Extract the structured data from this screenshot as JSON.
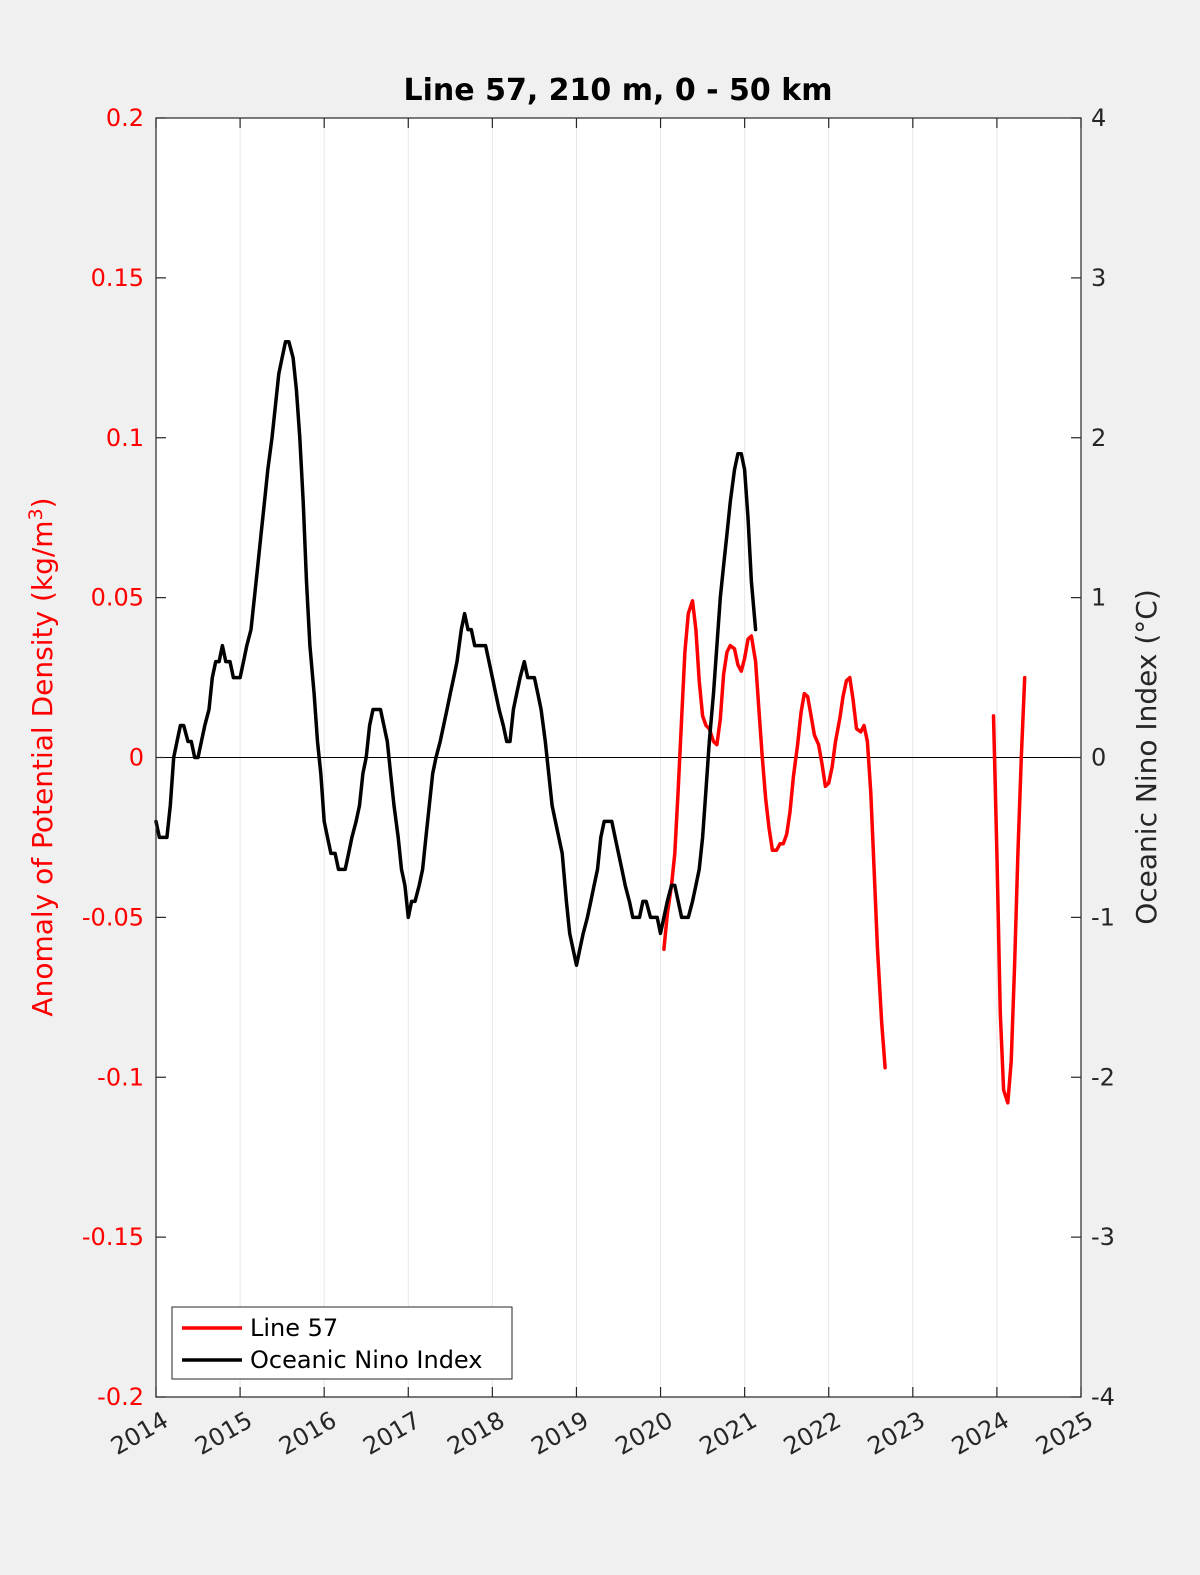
{
  "chart_data": {
    "type": "line",
    "title": "Line 57, 210 m, 0 - 50 km",
    "xlabel": "",
    "ylabel_left": "Anomaly of Potential Density (kg/m",
    "ylabel_left_sup": "3",
    "ylabel_left_close": ")",
    "ylabel_right": "Oceanic Nino Index (°C)",
    "xlim": [
      2014,
      2025
    ],
    "ylim_left": [
      -0.2,
      0.2
    ],
    "ylim_right": [
      -4,
      4
    ],
    "x_ticks": [
      "2014",
      "2015",
      "2016",
      "2017",
      "2018",
      "2019",
      "2020",
      "2021",
      "2022",
      "2023",
      "2024",
      "2025"
    ],
    "y_ticks_left": [
      "0.2",
      "0.15",
      "0.1",
      "0.05",
      "0",
      "-0.05",
      "-0.1",
      "-0.15",
      "-0.2"
    ],
    "y_ticks_right": [
      "4",
      "3",
      "2",
      "1",
      "0",
      "-1",
      "-2",
      "-3",
      "-4"
    ],
    "grid": "vertical",
    "legend_position": "bottom-left",
    "series": [
      {
        "name": "Line 57",
        "axis": "left",
        "color": "#ff0000",
        "segments": [
          [
            [
              2020.04,
              -0.06
            ],
            [
              2020.08,
              -0.049
            ],
            [
              2020.13,
              -0.04
            ],
            [
              2020.17,
              -0.03
            ],
            [
              2020.21,
              -0.01
            ],
            [
              2020.25,
              0.012
            ],
            [
              2020.29,
              0.033
            ],
            [
              2020.33,
              0.045
            ],
            [
              2020.38,
              0.049
            ],
            [
              2020.42,
              0.04
            ],
            [
              2020.46,
              0.024
            ],
            [
              2020.5,
              0.013
            ],
            [
              2020.54,
              0.01
            ],
            [
              2020.58,
              0.009
            ],
            [
              2020.63,
              0.005
            ],
            [
              2020.67,
              0.004
            ],
            [
              2020.71,
              0.012
            ],
            [
              2020.75,
              0.026
            ],
            [
              2020.79,
              0.033
            ],
            [
              2020.83,
              0.035
            ],
            [
              2020.88,
              0.034
            ],
            [
              2020.92,
              0.029
            ],
            [
              2020.96,
              0.027
            ],
            [
              2021.0,
              0.031
            ],
            [
              2021.04,
              0.037
            ],
            [
              2021.08,
              0.038
            ],
            [
              2021.13,
              0.03
            ],
            [
              2021.17,
              0.015
            ],
            [
              2021.21,
              0.0
            ],
            [
              2021.25,
              -0.013
            ],
            [
              2021.29,
              -0.022
            ],
            [
              2021.33,
              -0.029
            ],
            [
              2021.38,
              -0.029
            ],
            [
              2021.42,
              -0.027
            ],
            [
              2021.46,
              -0.027
            ],
            [
              2021.5,
              -0.024
            ],
            [
              2021.54,
              -0.017
            ],
            [
              2021.58,
              -0.006
            ],
            [
              2021.63,
              0.004
            ],
            [
              2021.67,
              0.014
            ],
            [
              2021.71,
              0.02
            ],
            [
              2021.75,
              0.019
            ],
            [
              2021.79,
              0.013
            ],
            [
              2021.83,
              0.007
            ],
            [
              2021.88,
              0.004
            ],
            [
              2021.92,
              -0.002
            ],
            [
              2021.96,
              -0.009
            ],
            [
              2022.0,
              -0.008
            ],
            [
              2022.04,
              -0.003
            ],
            [
              2022.08,
              0.005
            ],
            [
              2022.13,
              0.012
            ],
            [
              2022.17,
              0.019
            ],
            [
              2022.21,
              0.024
            ],
            [
              2022.25,
              0.025
            ],
            [
              2022.29,
              0.018
            ],
            [
              2022.33,
              0.009
            ],
            [
              2022.38,
              0.008
            ],
            [
              2022.42,
              0.01
            ],
            [
              2022.46,
              0.005
            ],
            [
              2022.5,
              -0.011
            ],
            [
              2022.54,
              -0.035
            ],
            [
              2022.58,
              -0.06
            ],
            [
              2022.63,
              -0.083
            ],
            [
              2022.67,
              -0.097
            ]
          ],
          [
            [
              2023.96,
              0.013
            ],
            [
              2024.0,
              -0.03
            ],
            [
              2024.04,
              -0.08
            ],
            [
              2024.08,
              -0.104
            ],
            [
              2024.13,
              -0.108
            ],
            [
              2024.17,
              -0.095
            ],
            [
              2024.21,
              -0.065
            ],
            [
              2024.25,
              -0.03
            ],
            [
              2024.29,
              0.0
            ],
            [
              2024.33,
              0.025
            ]
          ]
        ]
      },
      {
        "name": "Oceanic Nino Index",
        "axis": "right",
        "color": "#000000",
        "points": [
          [
            2014.0,
            -0.4
          ],
          [
            2014.04,
            -0.5
          ],
          [
            2014.08,
            -0.5
          ],
          [
            2014.13,
            -0.5
          ],
          [
            2014.17,
            -0.3
          ],
          [
            2014.21,
            0.0
          ],
          [
            2014.25,
            0.1
          ],
          [
            2014.29,
            0.2
          ],
          [
            2014.33,
            0.2
          ],
          [
            2014.38,
            0.1
          ],
          [
            2014.42,
            0.1
          ],
          [
            2014.46,
            0.0
          ],
          [
            2014.5,
            0.0
          ],
          [
            2014.54,
            0.1
          ],
          [
            2014.58,
            0.2
          ],
          [
            2014.63,
            0.3
          ],
          [
            2014.67,
            0.5
          ],
          [
            2014.71,
            0.6
          ],
          [
            2014.75,
            0.6
          ],
          [
            2014.79,
            0.7
          ],
          [
            2014.83,
            0.6
          ],
          [
            2014.88,
            0.6
          ],
          [
            2014.92,
            0.5
          ],
          [
            2014.96,
            0.5
          ],
          [
            2015.0,
            0.5
          ],
          [
            2015.04,
            0.6
          ],
          [
            2015.08,
            0.7
          ],
          [
            2015.13,
            0.8
          ],
          [
            2015.17,
            1.0
          ],
          [
            2015.21,
            1.2
          ],
          [
            2015.25,
            1.4
          ],
          [
            2015.29,
            1.6
          ],
          [
            2015.33,
            1.8
          ],
          [
            2015.38,
            2.0
          ],
          [
            2015.42,
            2.2
          ],
          [
            2015.46,
            2.4
          ],
          [
            2015.5,
            2.5
          ],
          [
            2015.54,
            2.6
          ],
          [
            2015.58,
            2.6
          ],
          [
            2015.63,
            2.5
          ],
          [
            2015.67,
            2.3
          ],
          [
            2015.71,
            2.0
          ],
          [
            2015.75,
            1.6
          ],
          [
            2015.79,
            1.1
          ],
          [
            2015.83,
            0.7
          ],
          [
            2015.88,
            0.4
          ],
          [
            2015.92,
            0.1
          ],
          [
            2015.96,
            -0.1
          ],
          [
            2016.0,
            -0.4
          ],
          [
            2016.04,
            -0.5
          ],
          [
            2016.08,
            -0.6
          ],
          [
            2016.13,
            -0.6
          ],
          [
            2016.17,
            -0.7
          ],
          [
            2016.21,
            -0.7
          ],
          [
            2016.25,
            -0.7
          ],
          [
            2016.29,
            -0.6
          ],
          [
            2016.33,
            -0.5
          ],
          [
            2016.38,
            -0.4
          ],
          [
            2016.42,
            -0.3
          ],
          [
            2016.46,
            -0.1
          ],
          [
            2016.5,
            0.0
          ],
          [
            2016.54,
            0.2
          ],
          [
            2016.58,
            0.3
          ],
          [
            2016.63,
            0.3
          ],
          [
            2016.67,
            0.3
          ],
          [
            2016.71,
            0.2
          ],
          [
            2016.75,
            0.1
          ],
          [
            2016.79,
            -0.1
          ],
          [
            2016.83,
            -0.3
          ],
          [
            2016.88,
            -0.5
          ],
          [
            2016.92,
            -0.7
          ],
          [
            2016.96,
            -0.8
          ],
          [
            2017.0,
            -1.0
          ],
          [
            2017.04,
            -0.9
          ],
          [
            2017.08,
            -0.9
          ],
          [
            2017.13,
            -0.8
          ],
          [
            2017.17,
            -0.7
          ],
          [
            2017.21,
            -0.5
          ],
          [
            2017.25,
            -0.3
          ],
          [
            2017.29,
            -0.1
          ],
          [
            2017.33,
            0.0
          ],
          [
            2017.38,
            0.1
          ],
          [
            2017.42,
            0.2
          ],
          [
            2017.46,
            0.3
          ],
          [
            2017.5,
            0.4
          ],
          [
            2017.54,
            0.5
          ],
          [
            2017.58,
            0.6
          ],
          [
            2017.63,
            0.8
          ],
          [
            2017.67,
            0.9
          ],
          [
            2017.71,
            0.8
          ],
          [
            2017.75,
            0.8
          ],
          [
            2017.79,
            0.7
          ],
          [
            2017.83,
            0.7
          ],
          [
            2017.88,
            0.7
          ],
          [
            2017.92,
            0.7
          ],
          [
            2017.96,
            0.6
          ],
          [
            2018.0,
            0.5
          ],
          [
            2018.04,
            0.4
          ],
          [
            2018.08,
            0.3
          ],
          [
            2018.13,
            0.2
          ],
          [
            2018.17,
            0.1
          ],
          [
            2018.21,
            0.1
          ],
          [
            2018.25,
            0.3
          ],
          [
            2018.29,
            0.4
          ],
          [
            2018.33,
            0.5
          ],
          [
            2018.38,
            0.6
          ],
          [
            2018.42,
            0.5
          ],
          [
            2018.46,
            0.5
          ],
          [
            2018.5,
            0.5
          ],
          [
            2018.54,
            0.4
          ],
          [
            2018.58,
            0.3
          ],
          [
            2018.63,
            0.1
          ],
          [
            2018.67,
            -0.1
          ],
          [
            2018.71,
            -0.3
          ],
          [
            2018.75,
            -0.4
          ],
          [
            2018.79,
            -0.5
          ],
          [
            2018.83,
            -0.6
          ],
          [
            2018.88,
            -0.9
          ],
          [
            2018.92,
            -1.1
          ],
          [
            2018.96,
            -1.2
          ],
          [
            2019.0,
            -1.3
          ],
          [
            2019.04,
            -1.2
          ],
          [
            2019.08,
            -1.1
          ],
          [
            2019.13,
            -1.0
          ],
          [
            2019.17,
            -0.9
          ],
          [
            2019.21,
            -0.8
          ],
          [
            2019.25,
            -0.7
          ],
          [
            2019.29,
            -0.5
          ],
          [
            2019.33,
            -0.4
          ],
          [
            2019.38,
            -0.4
          ],
          [
            2019.42,
            -0.4
          ],
          [
            2019.46,
            -0.5
          ],
          [
            2019.5,
            -0.6
          ],
          [
            2019.54,
            -0.7
          ],
          [
            2019.58,
            -0.8
          ],
          [
            2019.63,
            -0.9
          ],
          [
            2019.67,
            -1.0
          ],
          [
            2019.71,
            -1.0
          ],
          [
            2019.75,
            -1.0
          ],
          [
            2019.79,
            -0.9
          ],
          [
            2019.83,
            -0.9
          ],
          [
            2019.88,
            -1.0
          ],
          [
            2019.92,
            -1.0
          ],
          [
            2019.96,
            -1.0
          ],
          [
            2020.0,
            -1.1
          ],
          [
            2020.04,
            -1.0
          ],
          [
            2020.08,
            -0.9
          ],
          [
            2020.13,
            -0.8
          ],
          [
            2020.17,
            -0.8
          ],
          [
            2020.21,
            -0.9
          ],
          [
            2020.25,
            -1.0
          ],
          [
            2020.29,
            -1.0
          ],
          [
            2020.33,
            -1.0
          ],
          [
            2020.38,
            -0.9
          ],
          [
            2020.42,
            -0.8
          ],
          [
            2020.46,
            -0.7
          ],
          [
            2020.5,
            -0.5
          ],
          [
            2020.54,
            -0.2
          ],
          [
            2020.58,
            0.1
          ],
          [
            2020.63,
            0.4
          ],
          [
            2020.67,
            0.7
          ],
          [
            2020.71,
            1.0
          ],
          [
            2020.75,
            1.2
          ],
          [
            2020.79,
            1.4
          ],
          [
            2020.83,
            1.6
          ],
          [
            2020.88,
            1.8
          ],
          [
            2020.92,
            1.9
          ],
          [
            2020.96,
            1.9
          ],
          [
            2021.0,
            1.8
          ],
          [
            2021.04,
            1.5
          ],
          [
            2021.08,
            1.1
          ],
          [
            2021.13,
            0.8
          ]
        ]
      }
    ]
  },
  "legend": {
    "items": [
      {
        "label": "Line 57",
        "color": "#ff0000"
      },
      {
        "label": "Oceanic Nino Index",
        "color": "#000000"
      }
    ]
  }
}
